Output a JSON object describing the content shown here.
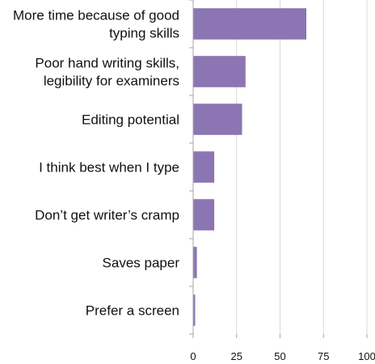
{
  "chart_data": {
    "type": "bar",
    "orientation": "horizontal",
    "categories": [
      [
        "More time because of good",
        "typing skills"
      ],
      [
        "Poor hand writing skills,",
        "legibility for examiners"
      ],
      [
        "Editing potential"
      ],
      [
        "I think best when I type"
      ],
      [
        "Don’t get writer’s cramp"
      ],
      [
        "Saves paper"
      ],
      [
        "Prefer a screen"
      ]
    ],
    "values": [
      65,
      30,
      28,
      12,
      12,
      2,
      1
    ],
    "xlim": [
      0,
      100
    ],
    "xticks": [
      "0",
      "25",
      "50",
      "75",
      "100"
    ],
    "grid": "vertical",
    "colors": {
      "bar": "#8b76b3",
      "bar_edge": "#7a66a3",
      "grid": "#d9d9d9",
      "axis": "#a6a6a6"
    }
  }
}
